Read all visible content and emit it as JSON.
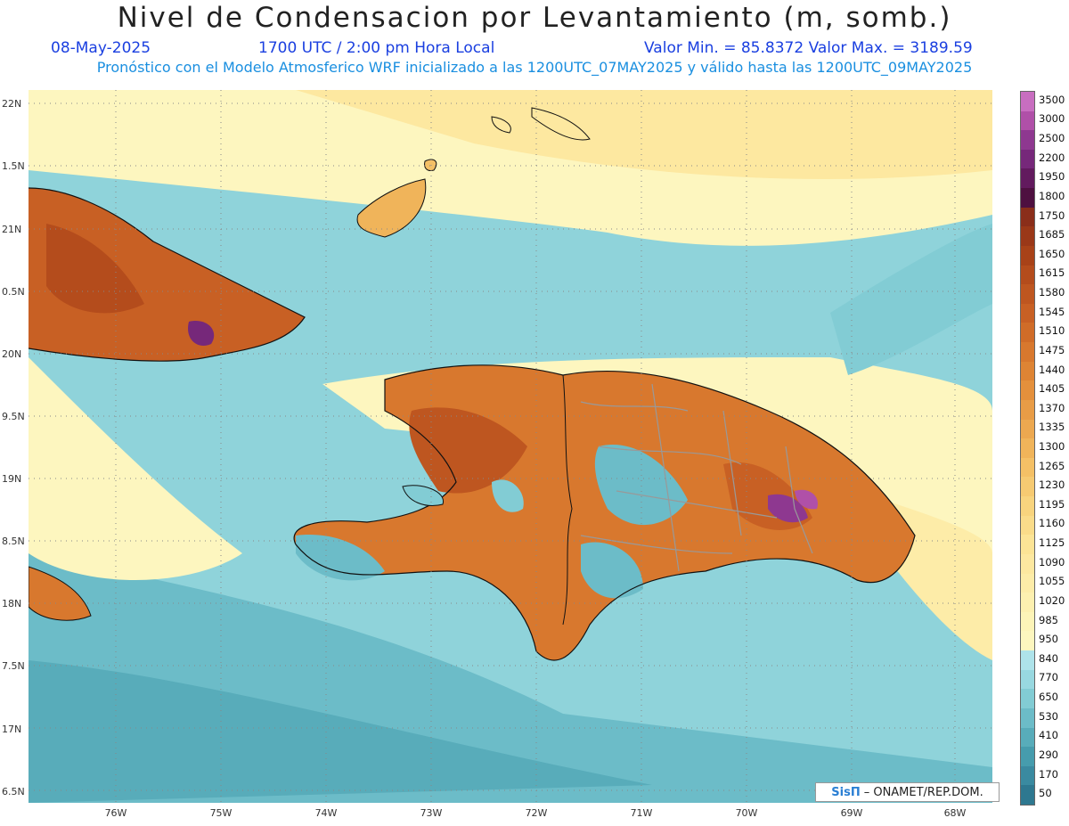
{
  "header": {
    "title": "Nivel de Condensacion por Levantamiento (m, somb.)",
    "date": "08-May-2025",
    "time": "1700 UTC / 2:00 pm Hora Local",
    "range": "Valor Min. = 85.8372  Valor Max. = 3189.59",
    "forecast_note": "Pronóstico con el Modelo Atmosferico WRF inicializado a las 1200UTC_07MAY2025 y válido hasta las  1200UTC_09MAY2025"
  },
  "axes": {
    "lat_labels": [
      "22N",
      "1.5N",
      "21N",
      "0.5N",
      "20N",
      "9.5N",
      "19N",
      "8.5N",
      "18N",
      "7.5N",
      "17N",
      "6.5N"
    ],
    "lon_labels": [
      "76W",
      "75W",
      "74W",
      "73W",
      "72W",
      "71W",
      "70W",
      "69W",
      "68W"
    ]
  },
  "colorbar": {
    "labels": [
      "3500",
      "3000",
      "2500",
      "2200",
      "1950",
      "1800",
      "1750",
      "1685",
      "1650",
      "1615",
      "1580",
      "1545",
      "1510",
      "1475",
      "1440",
      "1405",
      "1370",
      "1335",
      "1300",
      "1265",
      "1230",
      "1195",
      "1160",
      "1125",
      "1090",
      "1055",
      "1020",
      "985",
      "950",
      "840",
      "770",
      "650",
      "530",
      "410",
      "290",
      "170",
      "50"
    ],
    "colors": [
      "#c86ec0",
      "#b050a8",
      "#8e3890",
      "#76287a",
      "#621a5e",
      "#4e1040",
      "#8a2e1a",
      "#9a3818",
      "#a84218",
      "#b44c1c",
      "#be5620",
      "#c86024",
      "#d06c28",
      "#d8782e",
      "#de8434",
      "#e4903c",
      "#e89c46",
      "#eca850",
      "#f0b45a",
      "#f4c066",
      "#f6ca72",
      "#f8d47e",
      "#fadc8a",
      "#fce496",
      "#fde8a0",
      "#fdeca8",
      "#fdf0b0",
      "#fdf4b8",
      "#fdf6bf",
      "#aee3ea",
      "#98d8e0",
      "#82ccd4",
      "#6cbcc8",
      "#58acba",
      "#469cad",
      "#3a8aa0",
      "#2e7890"
    ]
  },
  "credit": {
    "logo": "SisΠ",
    "org": "–  ONAMET/REP.DOM."
  }
}
